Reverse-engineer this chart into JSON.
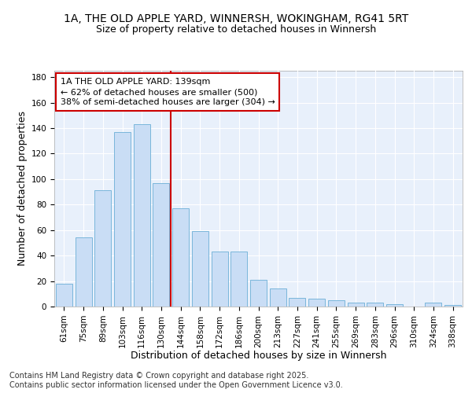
{
  "title_line1": "1A, THE OLD APPLE YARD, WINNERSH, WOKINGHAM, RG41 5RT",
  "title_line2": "Size of property relative to detached houses in Winnersh",
  "xlabel": "Distribution of detached houses by size in Winnersh",
  "ylabel": "Number of detached properties",
  "categories": [
    "61sqm",
    "75sqm",
    "89sqm",
    "103sqm",
    "116sqm",
    "130sqm",
    "144sqm",
    "158sqm",
    "172sqm",
    "186sqm",
    "200sqm",
    "213sqm",
    "227sqm",
    "241sqm",
    "255sqm",
    "269sqm",
    "283sqm",
    "296sqm",
    "310sqm",
    "324sqm",
    "338sqm"
  ],
  "values": [
    18,
    54,
    91,
    137,
    143,
    97,
    77,
    59,
    43,
    43,
    21,
    14,
    7,
    6,
    5,
    3,
    3,
    2,
    0,
    3,
    1
  ],
  "bar_color": "#c9ddf5",
  "bar_edge_color": "#6baed6",
  "vline_x": 5.5,
  "vline_color": "#cc0000",
  "annotation_text": "1A THE OLD APPLE YARD: 139sqm\n← 62% of detached houses are smaller (500)\n38% of semi-detached houses are larger (304) →",
  "annotation_box_color": "#ffffff",
  "annotation_box_edge": "#cc0000",
  "ylim": [
    0,
    185
  ],
  "yticks": [
    0,
    20,
    40,
    60,
    80,
    100,
    120,
    140,
    160,
    180
  ],
  "footnote": "Contains HM Land Registry data © Crown copyright and database right 2025.\nContains public sector information licensed under the Open Government Licence v3.0.",
  "fig_bg_color": "#ffffff",
  "plot_bg": "#e8f0fb",
  "grid_color": "#ffffff",
  "title_fontsize": 10,
  "subtitle_fontsize": 9,
  "axis_label_fontsize": 9,
  "tick_fontsize": 7.5,
  "annotation_fontsize": 8,
  "footnote_fontsize": 7
}
